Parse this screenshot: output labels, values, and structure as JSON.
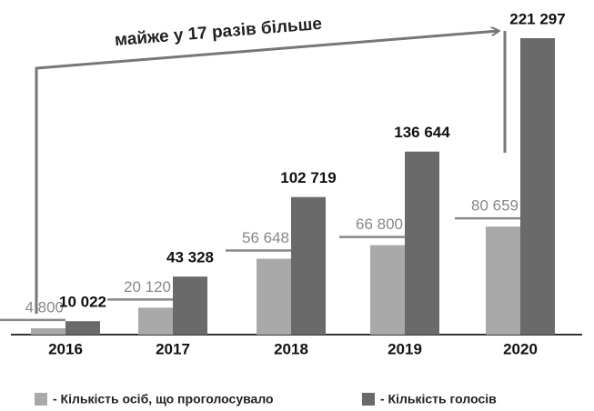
{
  "chart_data": {
    "type": "bar",
    "annotation": "майже у 17 разів більше",
    "categories": [
      "2016",
      "2017",
      "2018",
      "2019",
      "2020"
    ],
    "series": [
      {
        "name": "- Кількість осіб, що проголосувало",
        "color": "#a9a9a9",
        "values": [
          4800,
          20120,
          56648,
          66800,
          80659
        ],
        "value_labels": [
          "4 800",
          "20 120",
          "56 648",
          "66 800",
          "80 659"
        ]
      },
      {
        "name": "- Кількість голосів",
        "color": "#6a6a6a",
        "values": [
          10022,
          43328,
          102719,
          136644,
          221297
        ],
        "value_labels": [
          "10 022",
          "43 328",
          "102 719",
          "136 644",
          "221 297"
        ]
      }
    ]
  }
}
